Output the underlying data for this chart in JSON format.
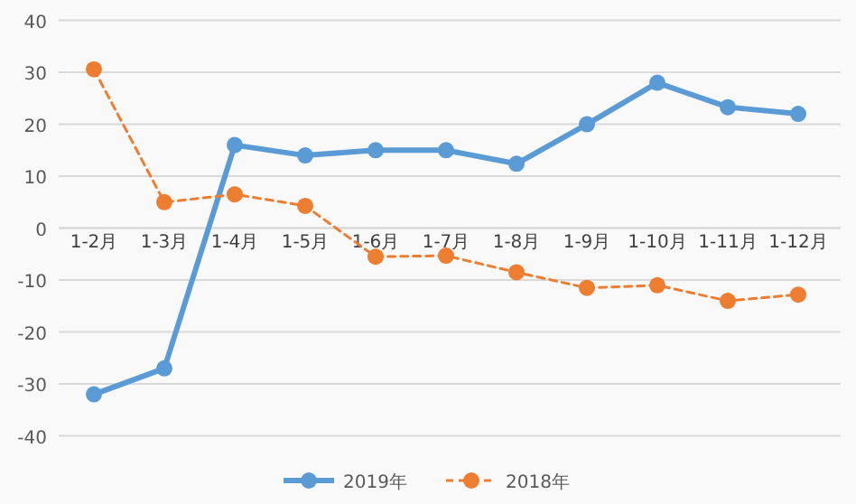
{
  "chart_data": {
    "type": "line",
    "categories": [
      "1-2月",
      "1-3月",
      "1-4月",
      "1-5月",
      "1-6月",
      "1-7月",
      "1-8月",
      "1-9月",
      "1-10月",
      "1-11月",
      "1-12月"
    ],
    "series": [
      {
        "name": "2019年",
        "color": "#5b9bd5",
        "line_style": "solid",
        "values": [
          -32,
          -27,
          16,
          14,
          15,
          15,
          12.4,
          20,
          28,
          23.3,
          22
        ]
      },
      {
        "name": "2018年",
        "color": "#ed7d31",
        "line_style": "dashed",
        "values": [
          30.6,
          5,
          6.5,
          4.3,
          -5.5,
          -5.3,
          -8.5,
          -11.5,
          -11,
          -14,
          -12.8
        ]
      }
    ],
    "ylim": [
      -40,
      40
    ],
    "yticks": [
      -40,
      -30,
      -20,
      -10,
      0,
      10,
      20,
      30,
      40
    ],
    "grid": "y",
    "legend": "bottom",
    "marker": "circle"
  }
}
